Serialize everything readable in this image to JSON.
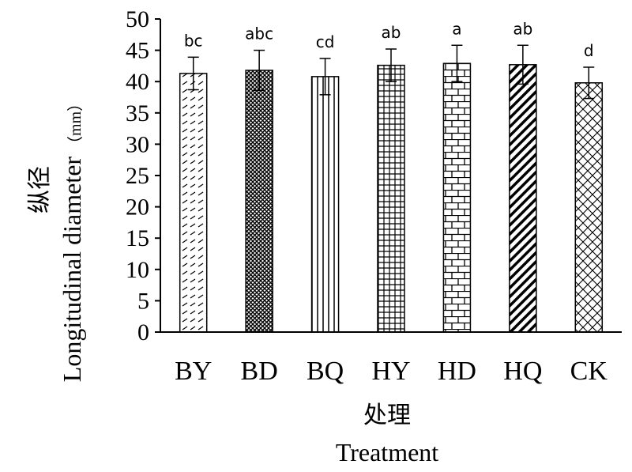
{
  "chart_data": {
    "type": "bar",
    "categories": [
      "BY",
      "BD",
      "BQ",
      "HY",
      "HD",
      "HQ",
      "CK"
    ],
    "values": [
      41.3,
      41.8,
      40.8,
      42.6,
      42.9,
      42.7,
      39.8
    ],
    "errors": [
      2.6,
      3.2,
      2.9,
      2.6,
      2.9,
      3.1,
      2.5
    ],
    "significance": [
      "bc",
      "abc",
      "cd",
      "ab",
      "a",
      "ab",
      "d"
    ],
    "patterns": [
      "diagonal-dashes",
      "crosshatch-dense",
      "vertical-lines",
      "grid",
      "brick",
      "diagonal-stripes",
      "diamond-crosshatch"
    ],
    "yticks": [
      "0",
      "5",
      "10",
      "15",
      "20",
      "25",
      "30",
      "35",
      "40",
      "45",
      "50"
    ],
    "ylim": [
      0,
      50
    ],
    "ylabel_cn": "纵径",
    "ylabel_en": "Longitudinal diameter",
    "ylabel_unit": "（mm）",
    "xlabel_cn": "处理",
    "xlabel_en": "Treatment",
    "grid": false,
    "legend": "none"
  }
}
